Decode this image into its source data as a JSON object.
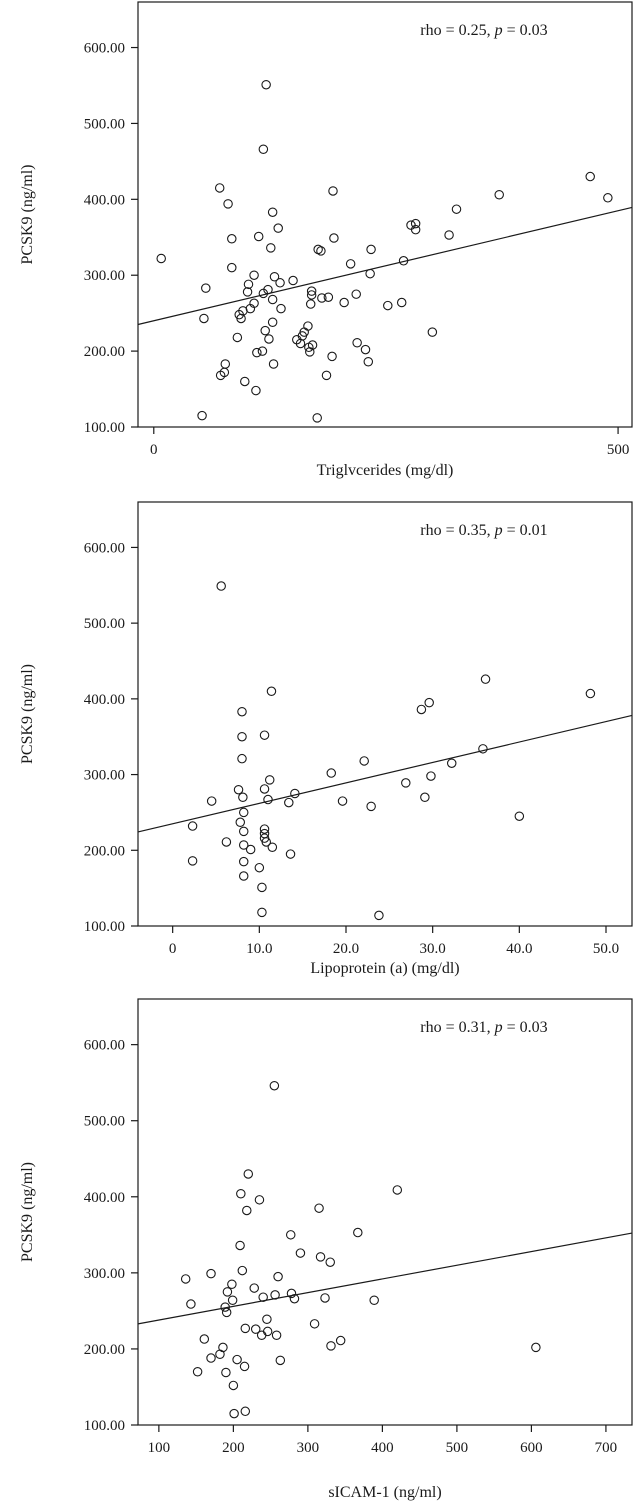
{
  "chart_data": [
    {
      "type": "scatter",
      "xlabel": "Triglvcerides (mg/dl)",
      "ylabel": "PCSK9 (ng/ml)",
      "annotation": {
        "prefix": "rho = 0.25, ",
        "p_symbol": "p",
        "suffix": " = 0.03"
      },
      "xlim": [
        -17,
        515
      ],
      "ylim": [
        100,
        660
      ],
      "xticks": [
        0,
        500
      ],
      "xtick_labels": [
        "0",
        "500"
      ],
      "yticks": [
        100,
        200,
        300,
        400,
        500,
        600
      ],
      "ytick_labels": [
        "100.00",
        "200.00",
        "300.00",
        "400.00",
        "500.00",
        "600.00"
      ],
      "grid": false,
      "regression": {
        "intercept": 240,
        "slope": 0.29
      },
      "points": [
        [
          52,
          115
        ],
        [
          8,
          322
        ],
        [
          54,
          243
        ],
        [
          56,
          283
        ],
        [
          71,
          415
        ],
        [
          72,
          168
        ],
        [
          76,
          172
        ],
        [
          77,
          183
        ],
        [
          80,
          394
        ],
        [
          84,
          348
        ],
        [
          84,
          310
        ],
        [
          90,
          218
        ],
        [
          92,
          248
        ],
        [
          94,
          243
        ],
        [
          96,
          253
        ],
        [
          98,
          160
        ],
        [
          101,
          278
        ],
        [
          102,
          288
        ],
        [
          104,
          256
        ],
        [
          108,
          300
        ],
        [
          108,
          263
        ],
        [
          110,
          148
        ],
        [
          111,
          198
        ],
        [
          113,
          351
        ],
        [
          117,
          200
        ],
        [
          118,
          276
        ],
        [
          118,
          466
        ],
        [
          120,
          227
        ],
        [
          121,
          551
        ],
        [
          123,
          281
        ],
        [
          124,
          216
        ],
        [
          126,
          336
        ],
        [
          128,
          238
        ],
        [
          128,
          268
        ],
        [
          128,
          383
        ],
        [
          129,
          183
        ],
        [
          130,
          298
        ],
        [
          134,
          362
        ],
        [
          136,
          290
        ],
        [
          137,
          256
        ],
        [
          150,
          293
        ],
        [
          154,
          215
        ],
        [
          158,
          210
        ],
        [
          160,
          220
        ],
        [
          162,
          225
        ],
        [
          166,
          233
        ],
        [
          167,
          205
        ],
        [
          168,
          199
        ],
        [
          169,
          262
        ],
        [
          170,
          274
        ],
        [
          170,
          279
        ],
        [
          171,
          208
        ],
        [
          176,
          112
        ],
        [
          177,
          334
        ],
        [
          180,
          332
        ],
        [
          181,
          270
        ],
        [
          186,
          168
        ],
        [
          188,
          271
        ],
        [
          192,
          193
        ],
        [
          193,
          411
        ],
        [
          194,
          349
        ],
        [
          205,
          264
        ],
        [
          212,
          315
        ],
        [
          218,
          275
        ],
        [
          219,
          211
        ],
        [
          228,
          202
        ],
        [
          231,
          186
        ],
        [
          233,
          302
        ],
        [
          234,
          334
        ],
        [
          252,
          260
        ],
        [
          267,
          264
        ],
        [
          269,
          319
        ],
        [
          277,
          366
        ],
        [
          282,
          368
        ],
        [
          282,
          360
        ],
        [
          300,
          225
        ],
        [
          318,
          353
        ],
        [
          326,
          387
        ],
        [
          372,
          406
        ],
        [
          470,
          430
        ],
        [
          489,
          402
        ]
      ]
    },
    {
      "type": "scatter",
      "xlabel": "Lipoprotein (a) (mg/dl)",
      "ylabel": "PCSK9 (ng/ml)",
      "annotation": {
        "prefix": "rho = 0.35, ",
        "p_symbol": "p",
        "suffix": " = 0.01"
      },
      "xlim": [
        -4,
        53
      ],
      "ylim": [
        100,
        660
      ],
      "xticks": [
        0,
        10,
        20,
        30,
        40,
        50
      ],
      "xtick_labels": [
        "0",
        "10.0",
        "20.0",
        "30.0",
        "40.0",
        "50.0"
      ],
      "yticks": [
        100,
        200,
        300,
        400,
        500,
        600
      ],
      "ytick_labels": [
        "100.00",
        "200.00",
        "300.00",
        "400.00",
        "500.00",
        "600.00"
      ],
      "grid": false,
      "regression": {
        "intercept": 235,
        "slope": 2.7
      },
      "points": [
        [
          2.3,
          232
        ],
        [
          2.3,
          186
        ],
        [
          4.5,
          265
        ],
        [
          5.6,
          549
        ],
        [
          6.2,
          211
        ],
        [
          7.6,
          280
        ],
        [
          7.8,
          237
        ],
        [
          8.0,
          383
        ],
        [
          8.0,
          350
        ],
        [
          8.0,
          321
        ],
        [
          8.1,
          270
        ],
        [
          8.2,
          250
        ],
        [
          8.2,
          225
        ],
        [
          8.2,
          207
        ],
        [
          8.2,
          185
        ],
        [
          8.2,
          166
        ],
        [
          9.0,
          201
        ],
        [
          10.0,
          177
        ],
        [
          10.3,
          151
        ],
        [
          10.3,
          118
        ],
        [
          10.6,
          352
        ],
        [
          10.6,
          281
        ],
        [
          10.6,
          228
        ],
        [
          10.6,
          222
        ],
        [
          10.6,
          216
        ],
        [
          10.8,
          211
        ],
        [
          11.0,
          267
        ],
        [
          11.2,
          293
        ],
        [
          11.4,
          410
        ],
        [
          11.5,
          204
        ],
        [
          13.4,
          263
        ],
        [
          13.6,
          195
        ],
        [
          14.1,
          275
        ],
        [
          18.3,
          302
        ],
        [
          19.6,
          265
        ],
        [
          22.1,
          318
        ],
        [
          22.9,
          258
        ],
        [
          23.8,
          114
        ],
        [
          26.9,
          289
        ],
        [
          28.7,
          386
        ],
        [
          29.1,
          270
        ],
        [
          29.6,
          395
        ],
        [
          29.8,
          298
        ],
        [
          32.2,
          315
        ],
        [
          35.8,
          334
        ],
        [
          36.1,
          426
        ],
        [
          40.0,
          245
        ],
        [
          48.2,
          407
        ]
      ]
    },
    {
      "type": "scatter",
      "xlabel": "sICAM-1 (ng/ml)",
      "ylabel": "PCSK9 (ng/ml)",
      "annotation": {
        "prefix": "rho = 0.31, ",
        "p_symbol": "p",
        "suffix": " = 0.03"
      },
      "xlim": [
        72,
        735
      ],
      "ylim": [
        100,
        660
      ],
      "xticks": [
        100,
        200,
        300,
        400,
        500,
        600,
        700
      ],
      "xtick_labels": [
        "100",
        "200",
        "300",
        "400",
        "500",
        "600",
        "700"
      ],
      "yticks": [
        100,
        200,
        300,
        400,
        500,
        600
      ],
      "ytick_labels": [
        "100.00",
        "200.00",
        "300.00",
        "400.00",
        "500.00",
        "600.00"
      ],
      "grid": false,
      "regression": {
        "intercept": 220,
        "slope": 0.18
      },
      "points": [
        [
          136,
          292
        ],
        [
          143,
          259
        ],
        [
          152,
          170
        ],
        [
          161,
          213
        ],
        [
          170,
          299
        ],
        [
          170,
          188
        ],
        [
          182,
          193
        ],
        [
          186,
          202
        ],
        [
          189,
          255
        ],
        [
          190,
          169
        ],
        [
          191,
          248
        ],
        [
          192,
          275
        ],
        [
          198,
          285
        ],
        [
          199,
          264
        ],
        [
          200,
          152
        ],
        [
          201,
          115
        ],
        [
          205,
          186
        ],
        [
          209,
          336
        ],
        [
          210,
          404
        ],
        [
          212,
          303
        ],
        [
          215,
          177
        ],
        [
          216,
          118
        ],
        [
          216,
          227
        ],
        [
          218,
          382
        ],
        [
          220,
          430
        ],
        [
          228,
          280
        ],
        [
          230,
          226
        ],
        [
          235,
          396
        ],
        [
          238,
          218
        ],
        [
          240,
          268
        ],
        [
          245,
          239
        ],
        [
          246,
          223
        ],
        [
          255,
          546
        ],
        [
          256,
          271
        ],
        [
          258,
          218
        ],
        [
          260,
          295
        ],
        [
          263,
          185
        ],
        [
          277,
          350
        ],
        [
          278,
          273
        ],
        [
          282,
          266
        ],
        [
          290,
          326
        ],
        [
          309,
          233
        ],
        [
          315,
          385
        ],
        [
          317,
          321
        ],
        [
          323,
          267
        ],
        [
          330,
          314
        ],
        [
          331,
          204
        ],
        [
          344,
          211
        ],
        [
          367,
          353
        ],
        [
          389,
          264
        ],
        [
          420,
          409
        ],
        [
          606,
          202
        ]
      ]
    }
  ]
}
